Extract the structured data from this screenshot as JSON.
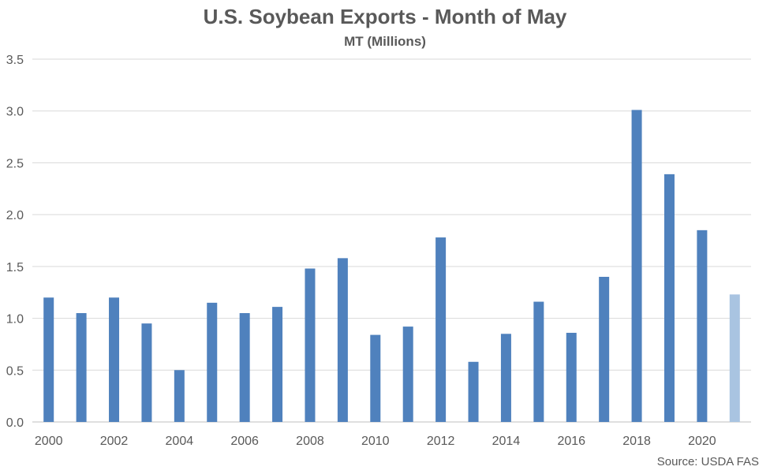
{
  "chart_data": {
    "type": "bar",
    "title": "U.S. Soybean Exports - Month of May",
    "subtitle": "MT (Millions)",
    "source": "Source: USDA FAS",
    "categories": [
      "2000",
      "2001",
      "2002",
      "2003",
      "2004",
      "2005",
      "2006",
      "2007",
      "2008",
      "2009",
      "2010",
      "2011",
      "2012",
      "2013",
      "2014",
      "2015",
      "2016",
      "2017",
      "2018",
      "2019",
      "2020",
      "2021"
    ],
    "x_tick_labels": [
      "2000",
      "2002",
      "2004",
      "2006",
      "2008",
      "2010",
      "2012",
      "2014",
      "2016",
      "2018",
      "2020"
    ],
    "values": [
      1.2,
      1.05,
      1.2,
      0.95,
      0.5,
      1.15,
      1.05,
      1.11,
      1.48,
      1.58,
      0.84,
      0.92,
      1.78,
      0.58,
      0.85,
      1.16,
      0.86,
      1.4,
      3.01,
      2.39,
      1.85,
      1.23
    ],
    "y_tick_labels": [
      "0.0",
      "0.5",
      "1.0",
      "1.5",
      "2.0",
      "2.5",
      "3.0",
      "3.5"
    ],
    "ylim": [
      0,
      3.5
    ],
    "grid": true,
    "legend": "none",
    "colors": {
      "bar": "#4f81bd",
      "bar_highlight": "#a9c4e1",
      "grid": "#d9d9d9",
      "text": "#595959"
    },
    "highlight_category": "2021"
  }
}
